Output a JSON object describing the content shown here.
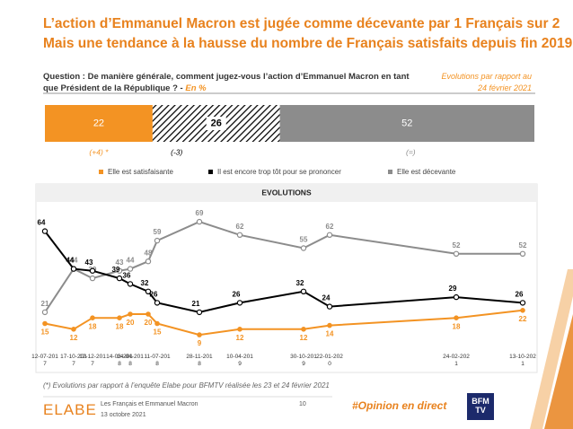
{
  "title_lines": [
    "L’action d’Emmanuel Macron est jugée comme décevante par 1 Français sur 2",
    "Mais une tendance à la hausse du nombre de Français satisfaits depuis fin 2019"
  ],
  "question": "Question : De manière générale, comment jugez-vous l’action d’Emmanuel Macron en tant que Président de la République ? -",
  "unit_note": "En %",
  "evolution_note": "Evolutions par rapport au 24 février 2021",
  "chart_data": [
    {
      "type": "stacked_bar",
      "series": [
        {
          "name": "Elle est satisfaisante",
          "color": "#f39323",
          "values": [
            22
          ],
          "change": "(+4) *"
        },
        {
          "name": "Il est encore trop tôt pour se prononcer",
          "color": "#000000",
          "pattern": "hatch",
          "values": [
            26
          ],
          "change": "(-3)"
        },
        {
          "name": "Elle est décevante",
          "color": "#8c8c8c",
          "values": [
            52
          ],
          "change": "(=)"
        }
      ]
    },
    {
      "type": "line",
      "title": "EVOLUTIONS",
      "categories": [
        "12-07-2017",
        "17-10-2017",
        "12-12-2017",
        "14-03-2018",
        "14-04-2018",
        null,
        "11-07-2018",
        "28-11-2018",
        "10-04-2019",
        "30-10-2019",
        "22-01-2020",
        "24-02-2021",
        "13-10-2021"
      ],
      "series": [
        {
          "color": "#8c8c8c",
          "values": [
            21,
            44,
            39,
            43,
            44,
            48,
            59,
            69,
            62,
            55,
            62,
            52,
            52
          ]
        },
        {
          "color": "#000000",
          "values": [
            64,
            44,
            43,
            39,
            36,
            32,
            26,
            21,
            26,
            32,
            24,
            29,
            26
          ]
        },
        {
          "color": "#f39323",
          "values": [
            15,
            12,
            18,
            18,
            20,
            20,
            15,
            9,
            12,
            12,
            14,
            18,
            22
          ]
        }
      ]
    }
  ],
  "footnote": "(*) Evolutions par rapport à l’enquête Elabe pour BFMTV réalisée les 23 et 24 février 2021",
  "footer": {
    "logo": "ELABE",
    "study": "Les Français et Emmanuel Macron",
    "date": "13 octobre 2021",
    "page": "10",
    "hashtag": "#Opinion en direct",
    "partner": "BFM TV"
  }
}
